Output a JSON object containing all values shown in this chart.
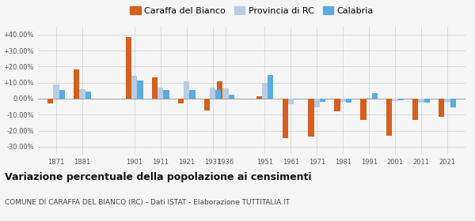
{
  "years": [
    1871,
    1881,
    1901,
    1911,
    1921,
    1931,
    1936,
    1951,
    1961,
    1971,
    1981,
    1991,
    2001,
    2011,
    2021
  ],
  "caraffa": [
    -3.0,
    18.0,
    38.5,
    13.5,
    -3.0,
    -7.5,
    11.0,
    1.5,
    -24.5,
    -23.5,
    -8.0,
    -13.5,
    -23.0,
    -13.5,
    -11.5
  ],
  "provincia": [
    9.0,
    6.0,
    14.5,
    7.0,
    11.0,
    7.0,
    6.5,
    10.0,
    -3.5,
    -5.5,
    -2.0,
    0.5,
    -1.5,
    -2.5,
    -2.0
  ],
  "calabria": [
    5.5,
    4.5,
    11.5,
    5.5,
    5.5,
    5.5,
    2.5,
    15.0,
    -0.5,
    -2.0,
    -2.5,
    3.5,
    -1.0,
    -2.5,
    -5.5
  ],
  "caraffa_color": "#d45f1e",
  "provincia_color": "#b8cce4",
  "calabria_color": "#5aace0",
  "ylim": [
    -35,
    45
  ],
  "yticks": [
    -30,
    -20,
    -10,
    0,
    10,
    20,
    30,
    40
  ],
  "ytick_labels": [
    "-30.00%",
    "-20.00%",
    "-10.00%",
    "0.00%",
    "+10.00%",
    "+20.00%",
    "+30.00%",
    "+40.00%"
  ],
  "title": "Variazione percentuale della popolazione ai censimenti",
  "subtitle": "COMUNE DI CARAFFA DEL BIANCO (RC) - Dati ISTAT - Elaborazione TUTTITALIA.IT",
  "legend_labels": [
    "Caraffa del Bianco",
    "Provincia di RC",
    "Calabria"
  ],
  "bar_width": 2.2,
  "background_color": "#f5f5f5",
  "grid_color": "#d0d0d0"
}
